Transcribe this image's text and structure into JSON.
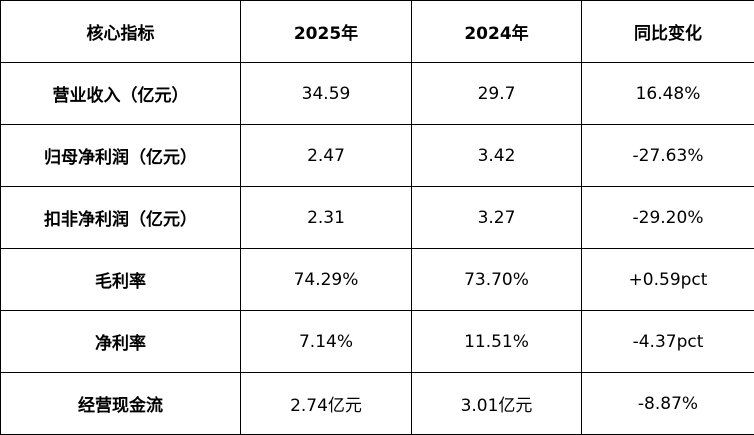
{
  "table": {
    "header": [
      "核心指标",
      "2025年",
      "2024年",
      "同比变化"
    ],
    "rows": [
      [
        "营业收入（亿元）",
        "34.59",
        "29.7",
        "16.48%"
      ],
      [
        "归母净利润（亿元）",
        "2.47",
        "3.42",
        "-27.63%"
      ],
      [
        "扣非净利润（亿元）",
        "2.31",
        "3.27",
        "-29.20%"
      ],
      [
        "毛利率",
        "74.29%",
        "73.70%",
        "+0.59pct"
      ],
      [
        "净利率",
        "7.14%",
        "11.51%",
        "-4.37pct"
      ],
      [
        "经营现金流",
        "2.74亿元",
        "3.01亿元",
        "-8.87%"
      ]
    ]
  }
}
